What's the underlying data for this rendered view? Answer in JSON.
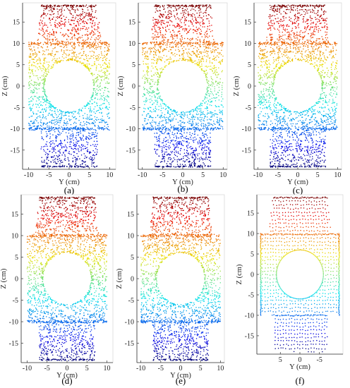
{
  "figure": {
    "description_labels": [
      "(a)",
      "(b)",
      "(c)",
      "(d)",
      "(e)",
      "(f)"
    ]
  },
  "chart_data": [
    {
      "type": "scatter",
      "caption": "(a)",
      "xlabel": "Y (cm)",
      "ylabel": "Z (cm)",
      "xlim": [
        -11.5,
        11.5
      ],
      "ylim": [
        -19.5,
        19.5
      ],
      "xticks": [
        -10,
        -5,
        0,
        5,
        10
      ],
      "yticks": [
        -15,
        -10,
        -5,
        0,
        5,
        10,
        15
      ],
      "xticklabels": [
        "-10",
        "-5",
        "0",
        "5",
        "10"
      ],
      "yticklabels": [
        "-15",
        "-10",
        "-5",
        "0",
        "5",
        "10",
        "15"
      ],
      "x_reversed": false,
      "seed": 11,
      "points": 1900,
      "colormap": "jet by Z (blue at bottom, red at top)"
    },
    {
      "type": "scatter",
      "caption": "(b)",
      "xlabel": "Y (cm)",
      "ylabel": "Z (cm)",
      "xlim": [
        -11,
        11
      ],
      "ylim": [
        -19.5,
        19.5
      ],
      "xticks": [
        -10,
        -5,
        0,
        5,
        10
      ],
      "yticks": [
        -15,
        -10,
        -5,
        0,
        5,
        10,
        15
      ],
      "xticklabels": [
        "-10",
        "-5",
        "0",
        "5",
        "10"
      ],
      "yticklabels": [
        "-15",
        "-10",
        "-5",
        "0",
        "5",
        "10",
        "15"
      ],
      "x_reversed": false,
      "seed": 23,
      "points": 1900,
      "colormap": "jet by Z (blue at bottom, red at top)"
    },
    {
      "type": "scatter",
      "caption": "(c)",
      "xlabel": "Y (cm)",
      "ylabel": "Z (cm)",
      "xlim": [
        -11,
        11
      ],
      "ylim": [
        -19.5,
        19.5
      ],
      "xticks": [
        -10,
        -5,
        0,
        5,
        10
      ],
      "yticks": [
        -15,
        -10,
        -5,
        0,
        5,
        10,
        15
      ],
      "xticklabels": [
        "-10",
        "-5",
        "0",
        "5",
        "10"
      ],
      "yticklabels": [
        "-15",
        "-10",
        "-5",
        "0",
        "5",
        "10",
        "15"
      ],
      "x_reversed": false,
      "seed": 37,
      "points": 1900,
      "colormap": "jet by Z (blue at bottom, red at top)"
    },
    {
      "type": "scatter",
      "caption": "(d)",
      "xlabel": "Y (cm)",
      "ylabel": "Z (cm)",
      "xlim": [
        -11.5,
        11.5
      ],
      "ylim": [
        -19.5,
        19.5
      ],
      "xticks": [
        -10,
        -5,
        0,
        5,
        10
      ],
      "yticks": [
        -15,
        -10,
        -5,
        0,
        5,
        10,
        15
      ],
      "xticklabels": [
        "-10",
        "-5",
        "0",
        "5",
        "10"
      ],
      "yticklabels": [
        "-15",
        "-10",
        "-5",
        "0",
        "5",
        "10",
        "15"
      ],
      "x_reversed": false,
      "seed": 41,
      "points": 1900,
      "colormap": "jet by Z (blue at bottom, red at top)"
    },
    {
      "type": "scatter",
      "caption": "(e)",
      "xlabel": "Y (cm)",
      "ylabel": "Z (cm)",
      "xlim": [
        -11,
        11
      ],
      "ylim": [
        -19.5,
        19.5
      ],
      "xticks": [
        -10,
        -5,
        0,
        5,
        10
      ],
      "yticks": [
        -15,
        -10,
        -5,
        0,
        5,
        10,
        15
      ],
      "xticklabels": [
        "-10",
        "-5",
        "0",
        "5",
        "10"
      ],
      "yticklabels": [
        "-15",
        "-10",
        "-5",
        "0",
        "5",
        "10",
        "15"
      ],
      "x_reversed": false,
      "seed": 53,
      "points": 1900,
      "colormap": "jet by Z (blue at bottom, red at top)"
    },
    {
      "type": "scatter",
      "caption": "(f)",
      "xlabel": "Y (cm)",
      "ylabel": "Z (cm)",
      "xlim": [
        -11,
        11
      ],
      "ylim": [
        -19.5,
        19.5
      ],
      "xticks": [
        5,
        0,
        -5
      ],
      "yticks": [
        -15,
        -10,
        -5,
        0,
        5,
        10,
        15
      ],
      "xticklabels": [
        "5",
        "0",
        "-5"
      ],
      "yticklabels": [
        "-15",
        "-10",
        "-5",
        "0",
        "5",
        "10",
        "15"
      ],
      "x_reversed": true,
      "structured": true,
      "seed": 67,
      "points": 1600,
      "colormap": "jet by Z (blue at bottom, red at top)"
    }
  ],
  "shape_model_cm": {
    "top_section": {
      "z_range": [
        10,
        19
      ],
      "half_width_bottom": 8,
      "half_width_top": 7
    },
    "middle_section": {
      "z_range": [
        -10,
        10
      ],
      "half_width": 10,
      "hole_center_z": 0,
      "hole_radius": 6
    },
    "bottom_section": {
      "z_range": [
        -19,
        -10
      ],
      "half_width": 7
    }
  }
}
